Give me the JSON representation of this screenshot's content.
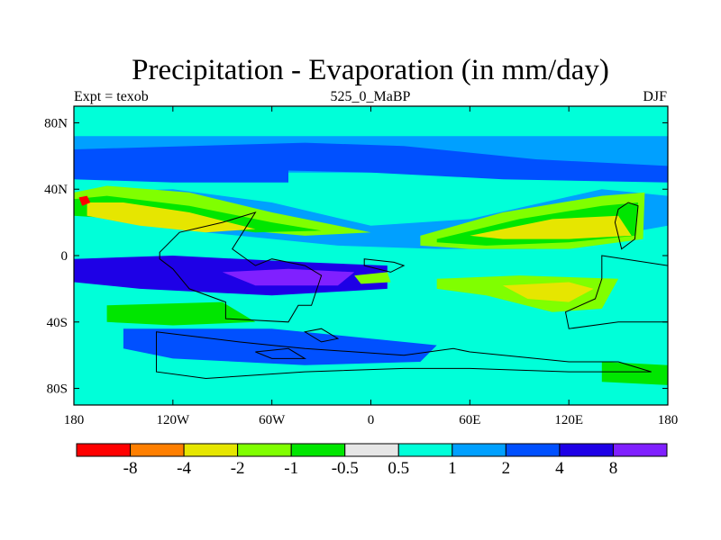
{
  "header": {
    "title": "Precipitation - Evaporation (in mm/day)",
    "left_label": "Expt = texob",
    "center_label": "525_0_MaBP",
    "right_label": "DJF"
  },
  "chart_data": {
    "type": "heatmap",
    "title": "Precipitation - Evaporation (in mm/day)",
    "xlabel": "",
    "ylabel": "",
    "xlim": [
      -180,
      180
    ],
    "ylim": [
      -90,
      90
    ],
    "x_ticks": [
      {
        "value": -180,
        "label": "180"
      },
      {
        "value": -120,
        "label": "120W"
      },
      {
        "value": -60,
        "label": "60W"
      },
      {
        "value": 0,
        "label": "0"
      },
      {
        "value": 60,
        "label": "60E"
      },
      {
        "value": 120,
        "label": "120E"
      },
      {
        "value": 180,
        "label": "180"
      }
    ],
    "y_ticks": [
      {
        "value": 80,
        "label": "80N"
      },
      {
        "value": 40,
        "label": "40N"
      },
      {
        "value": 0,
        "label": "0"
      },
      {
        "value": -40,
        "label": "40S"
      },
      {
        "value": -80,
        "label": "80S"
      }
    ],
    "colorbar": {
      "colors": [
        "#ff0000",
        "#ff7f00",
        "#e6e600",
        "#80ff00",
        "#00e600",
        "#e6e6e6",
        "#00ffd9",
        "#00a0ff",
        "#0050ff",
        "#1e00e6",
        "#8020ff"
      ],
      "boundary_labels": [
        "-8",
        "-4",
        "-2",
        "-1",
        "-0.5",
        "0.5",
        "1",
        "2",
        "4",
        "8"
      ]
    },
    "field_regions": [
      {
        "level": 6,
        "polygon": [
          [
            -180,
            90
          ],
          [
            180,
            90
          ],
          [
            180,
            -90
          ],
          [
            -180,
            -90
          ]
        ]
      },
      {
        "level": 7,
        "polygon": [
          [
            -180,
            72
          ],
          [
            180,
            72
          ],
          [
            180,
            50
          ],
          [
            -180,
            50
          ]
        ]
      },
      {
        "level": 8,
        "polygon": [
          [
            -180,
            64
          ],
          [
            -40,
            68
          ],
          [
            20,
            66
          ],
          [
            60,
            62
          ],
          [
            100,
            58
          ],
          [
            180,
            54
          ],
          [
            180,
            44
          ],
          [
            80,
            46
          ],
          [
            0,
            50
          ],
          [
            -80,
            52
          ],
          [
            -180,
            50
          ]
        ]
      },
      {
        "level": 8,
        "polygon": [
          [
            -180,
            54
          ],
          [
            -110,
            56
          ],
          [
            -50,
            52
          ],
          [
            -50,
            44
          ],
          [
            -120,
            44
          ],
          [
            -180,
            46
          ]
        ]
      },
      {
        "level": 7,
        "polygon": [
          [
            -180,
            38
          ],
          [
            -120,
            40
          ],
          [
            -60,
            32
          ],
          [
            0,
            18
          ],
          [
            60,
            22
          ],
          [
            140,
            40
          ],
          [
            180,
            36
          ],
          [
            180,
            18
          ],
          [
            100,
            4
          ],
          [
            40,
            4
          ],
          [
            -20,
            6
          ],
          [
            -100,
            14
          ],
          [
            -180,
            30
          ]
        ]
      },
      {
        "level": 3,
        "polygon": [
          [
            -180,
            38
          ],
          [
            -160,
            42
          ],
          [
            -110,
            38
          ],
          [
            -60,
            26
          ],
          [
            -20,
            18
          ],
          [
            0,
            14
          ],
          [
            -40,
            12
          ],
          [
            -110,
            18
          ],
          [
            -160,
            26
          ],
          [
            -180,
            28
          ]
        ]
      },
      {
        "level": 4,
        "polygon": [
          [
            -180,
            34
          ],
          [
            -160,
            36
          ],
          [
            -110,
            30
          ],
          [
            -60,
            20
          ],
          [
            -30,
            15
          ],
          [
            -70,
            14
          ],
          [
            -120,
            20
          ],
          [
            -180,
            24
          ]
        ]
      },
      {
        "level": 2,
        "polygon": [
          [
            -172,
            32
          ],
          [
            -150,
            32
          ],
          [
            -110,
            26
          ],
          [
            -70,
            16
          ],
          [
            -100,
            14
          ],
          [
            -140,
            18
          ],
          [
            -172,
            24
          ]
        ]
      },
      {
        "level": 0,
        "polygon": [
          [
            -177,
            35
          ],
          [
            -172,
            36
          ],
          [
            -170,
            32
          ],
          [
            -175,
            30
          ]
        ]
      },
      {
        "level": 3,
        "polygon": [
          [
            30,
            12
          ],
          [
            80,
            26
          ],
          [
            140,
            36
          ],
          [
            166,
            38
          ],
          [
            165,
            10
          ],
          [
            120,
            4
          ],
          [
            60,
            4
          ],
          [
            30,
            6
          ]
        ]
      },
      {
        "level": 4,
        "polygon": [
          [
            40,
            10
          ],
          [
            90,
            22
          ],
          [
            140,
            30
          ],
          [
            162,
            32
          ],
          [
            160,
            12
          ],
          [
            120,
            8
          ],
          [
            70,
            6
          ],
          [
            40,
            8
          ]
        ]
      },
      {
        "level": 2,
        "polygon": [
          [
            60,
            12
          ],
          [
            110,
            22
          ],
          [
            150,
            24
          ],
          [
            158,
            12
          ],
          [
            120,
            10
          ],
          [
            80,
            10
          ]
        ]
      },
      {
        "level": 9,
        "polygon": [
          [
            -180,
            -2
          ],
          [
            -120,
            0
          ],
          [
            -40,
            -4
          ],
          [
            10,
            -6
          ],
          [
            10,
            -20
          ],
          [
            -60,
            -24
          ],
          [
            -140,
            -20
          ],
          [
            -180,
            -16
          ]
        ]
      },
      {
        "level": 10,
        "polygon": [
          [
            -90,
            -10
          ],
          [
            -50,
            -8
          ],
          [
            -10,
            -10
          ],
          [
            -20,
            -18
          ],
          [
            -70,
            -18
          ]
        ]
      },
      {
        "level": 3,
        "polygon": [
          [
            -10,
            -12
          ],
          [
            10,
            -10
          ],
          [
            12,
            -16
          ],
          [
            -6,
            -17
          ]
        ]
      },
      {
        "level": 3,
        "polygon": [
          [
            40,
            -14
          ],
          [
            90,
            -12
          ],
          [
            150,
            -14
          ],
          [
            140,
            -32
          ],
          [
            110,
            -34
          ],
          [
            70,
            -24
          ],
          [
            40,
            -20
          ]
        ]
      },
      {
        "level": 2,
        "polygon": [
          [
            80,
            -18
          ],
          [
            120,
            -16
          ],
          [
            135,
            -20
          ],
          [
            120,
            -28
          ],
          [
            95,
            -26
          ]
        ]
      },
      {
        "level": 4,
        "polygon": [
          [
            -160,
            -30
          ],
          [
            -90,
            -28
          ],
          [
            -70,
            -40
          ],
          [
            -120,
            -42
          ],
          [
            -160,
            -40
          ]
        ]
      },
      {
        "level": 8,
        "polygon": [
          [
            -150,
            -44
          ],
          [
            -60,
            -44
          ],
          [
            0,
            -50
          ],
          [
            40,
            -54
          ],
          [
            30,
            -64
          ],
          [
            -40,
            -66
          ],
          [
            -120,
            -62
          ],
          [
            -150,
            -56
          ]
        ]
      },
      {
        "level": 4,
        "polygon": [
          [
            140,
            -64
          ],
          [
            180,
            -66
          ],
          [
            180,
            -78
          ],
          [
            140,
            -76
          ]
        ]
      }
    ],
    "land_outlines": [
      [
        [
          -128,
          2
        ],
        [
          -116,
          14
        ],
        [
          -90,
          20
        ],
        [
          -70,
          26
        ],
        [
          -84,
          4
        ],
        [
          -70,
          -6
        ],
        [
          -60,
          -2
        ],
        [
          -40,
          -6
        ],
        [
          -30,
          -12
        ],
        [
          -36,
          -30
        ],
        [
          -44,
          -30
        ],
        [
          -50,
          -40
        ],
        [
          -88,
          -38
        ],
        [
          -88,
          -28
        ],
        [
          -110,
          -20
        ],
        [
          -120,
          -8
        ],
        [
          -128,
          -2
        ]
      ],
      [
        [
          -4,
          -2
        ],
        [
          14,
          -4
        ],
        [
          20,
          -6
        ],
        [
          12,
          -10
        ],
        [
          -4,
          -6
        ]
      ],
      [
        [
          150,
          28
        ],
        [
          156,
          32
        ],
        [
          162,
          30
        ],
        [
          160,
          10
        ],
        [
          152,
          4
        ],
        [
          148,
          20
        ]
      ],
      [
        [
          140,
          0
        ],
        [
          180,
          -6
        ],
        [
          180,
          -40
        ],
        [
          150,
          -40
        ],
        [
          120,
          -44
        ],
        [
          118,
          -34
        ],
        [
          136,
          -26
        ],
        [
          140,
          -14
        ]
      ],
      [
        [
          -130,
          -46
        ],
        [
          -80,
          -52
        ],
        [
          -60,
          -54
        ],
        [
          -40,
          -56
        ],
        [
          20,
          -60
        ],
        [
          50,
          -56
        ],
        [
          60,
          -58
        ],
        [
          120,
          -64
        ],
        [
          150,
          -64
        ],
        [
          170,
          -70
        ],
        [
          120,
          -70
        ],
        [
          60,
          -68
        ],
        [
          20,
          -68
        ],
        [
          -40,
          -70
        ],
        [
          -100,
          -74
        ],
        [
          -130,
          -70
        ]
      ],
      [
        [
          -40,
          -46
        ],
        [
          -30,
          -44
        ],
        [
          -20,
          -50
        ],
        [
          -30,
          -52
        ]
      ],
      [
        [
          -70,
          -58
        ],
        [
          -50,
          -56
        ],
        [
          -40,
          -62
        ],
        [
          -60,
          -62
        ]
      ]
    ]
  }
}
